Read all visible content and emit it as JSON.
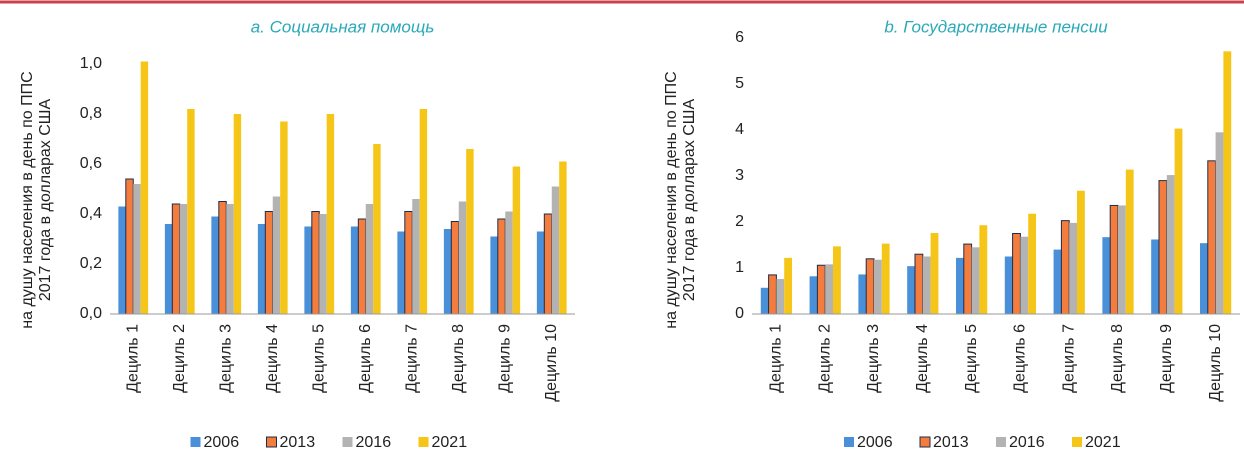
{
  "chart_data": [
    {
      "type": "bar",
      "title": "a. Социальная помощь",
      "y_label": [
        "на душу населения в день по ППС",
        "2017 года в долларах США"
      ],
      "categories": [
        "Дециль 1",
        "Дециль 2",
        "Дециль 3",
        "Дециль 4",
        "Дециль 5",
        "Дециль 6",
        "Дециль 7",
        "Дециль 8",
        "Дециль 9",
        "Дециль 10"
      ],
      "series": [
        {
          "name": "2006",
          "color": "#4a90d9",
          "values": [
            0.43,
            0.36,
            0.39,
            0.36,
            0.35,
            0.35,
            0.33,
            0.34,
            0.31,
            0.33
          ]
        },
        {
          "name": "2013",
          "color": "#f47c3c",
          "values": [
            0.54,
            0.44,
            0.45,
            0.41,
            0.41,
            0.38,
            0.41,
            0.37,
            0.38,
            0.4
          ]
        },
        {
          "name": "2016",
          "color": "#b3b3b3",
          "values": [
            0.52,
            0.44,
            0.44,
            0.47,
            0.4,
            0.44,
            0.46,
            0.45,
            0.41,
            0.51
          ]
        },
        {
          "name": "2021",
          "color": "#f5c518",
          "values": [
            1.01,
            0.82,
            0.8,
            0.77,
            0.8,
            0.68,
            0.82,
            0.66,
            0.59,
            0.61
          ]
        }
      ],
      "ylim": [
        0,
        1.02
      ],
      "yticks": [
        {
          "value": 0,
          "label": "0,0"
        },
        {
          "value": 0.2,
          "label": "0,2"
        },
        {
          "value": 0.4,
          "label": "0,4"
        },
        {
          "value": 0.6,
          "label": "0,6"
        },
        {
          "value": 0.8,
          "label": "0,8"
        },
        {
          "value": 1.0,
          "label": "1,0"
        }
      ]
    },
    {
      "type": "bar",
      "title": "b. Государственные пенсии",
      "y_label": [
        "на душу населения в день по ППС",
        "2017 года в долларах США"
      ],
      "categories": [
        "Дециль 1",
        "Дециль 2",
        "Дециль 3",
        "Дециль 4",
        "Дециль 5",
        "Дециль 6",
        "Дециль 7",
        "Дециль 8",
        "Дециль 9",
        "Дециль 10"
      ],
      "series": [
        {
          "name": "2006",
          "color": "#4a90d9",
          "values": [
            0.57,
            0.82,
            0.86,
            1.04,
            1.22,
            1.25,
            1.4,
            1.67,
            1.62,
            1.54
          ]
        },
        {
          "name": "2013",
          "color": "#f47c3c",
          "values": [
            0.85,
            1.06,
            1.2,
            1.3,
            1.52,
            1.75,
            2.03,
            2.36,
            2.9,
            3.33
          ]
        },
        {
          "name": "2016",
          "color": "#b3b3b3",
          "values": [
            0.76,
            1.08,
            1.18,
            1.25,
            1.45,
            1.68,
            1.98,
            2.36,
            3.02,
            3.95
          ]
        },
        {
          "name": "2021",
          "color": "#f5c518",
          "values": [
            1.22,
            1.47,
            1.53,
            1.76,
            1.93,
            2.18,
            2.68,
            3.14,
            4.03,
            5.71
          ]
        }
      ],
      "ylim": [
        0,
        6
      ],
      "yticks": [
        0,
        1,
        2,
        3,
        4,
        5,
        6
      ]
    }
  ]
}
